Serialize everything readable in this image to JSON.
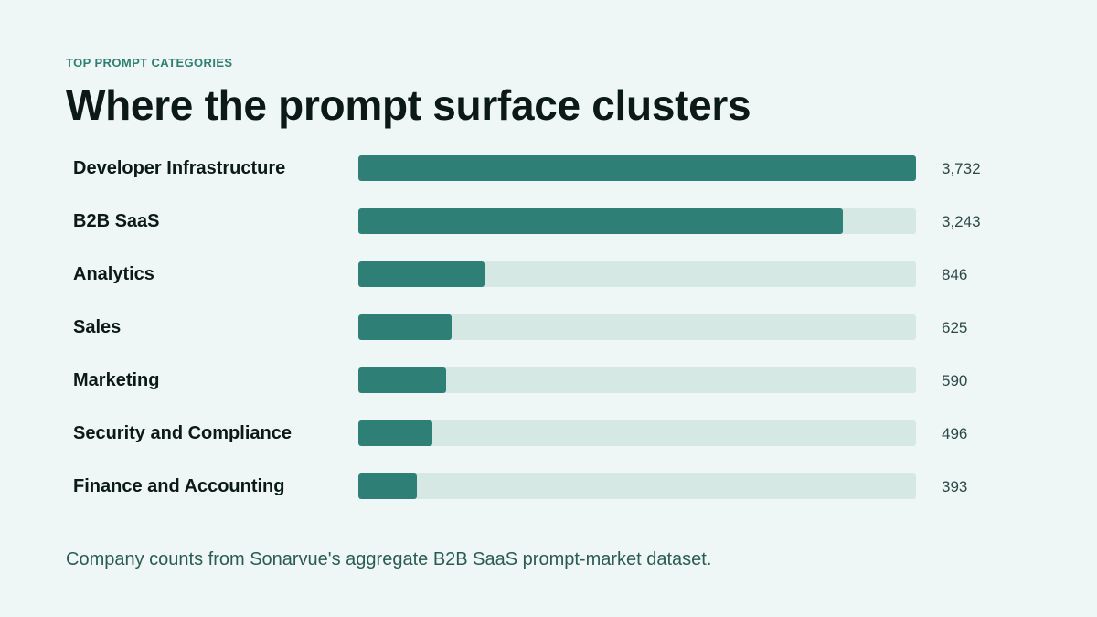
{
  "header": {
    "eyebrow": "TOP PROMPT CATEGORIES",
    "title": "Where the prompt surface clusters"
  },
  "footnote": "Company counts from Sonarvue's aggregate B2B SaaS prompt-market dataset.",
  "colors": {
    "background": "#eef7f5",
    "bar_fill": "#2e7f76",
    "bar_track": "#d5e8e4",
    "accent": "#2e7f72"
  },
  "chart_data": {
    "type": "bar",
    "orientation": "horizontal",
    "categories": [
      "Developer Infrastructure",
      "B2B SaaS",
      "Analytics",
      "Sales",
      "Marketing",
      "Security and Compliance",
      "Finance and Accounting"
    ],
    "values": [
      3732,
      3243,
      846,
      625,
      590,
      496,
      393
    ],
    "value_labels": [
      "3,732",
      "3,243",
      "846",
      "625",
      "590",
      "496",
      "393"
    ],
    "xlim": [
      0,
      3732
    ],
    "title": "Where the prompt surface clusters",
    "grid": false,
    "legend": "none"
  }
}
